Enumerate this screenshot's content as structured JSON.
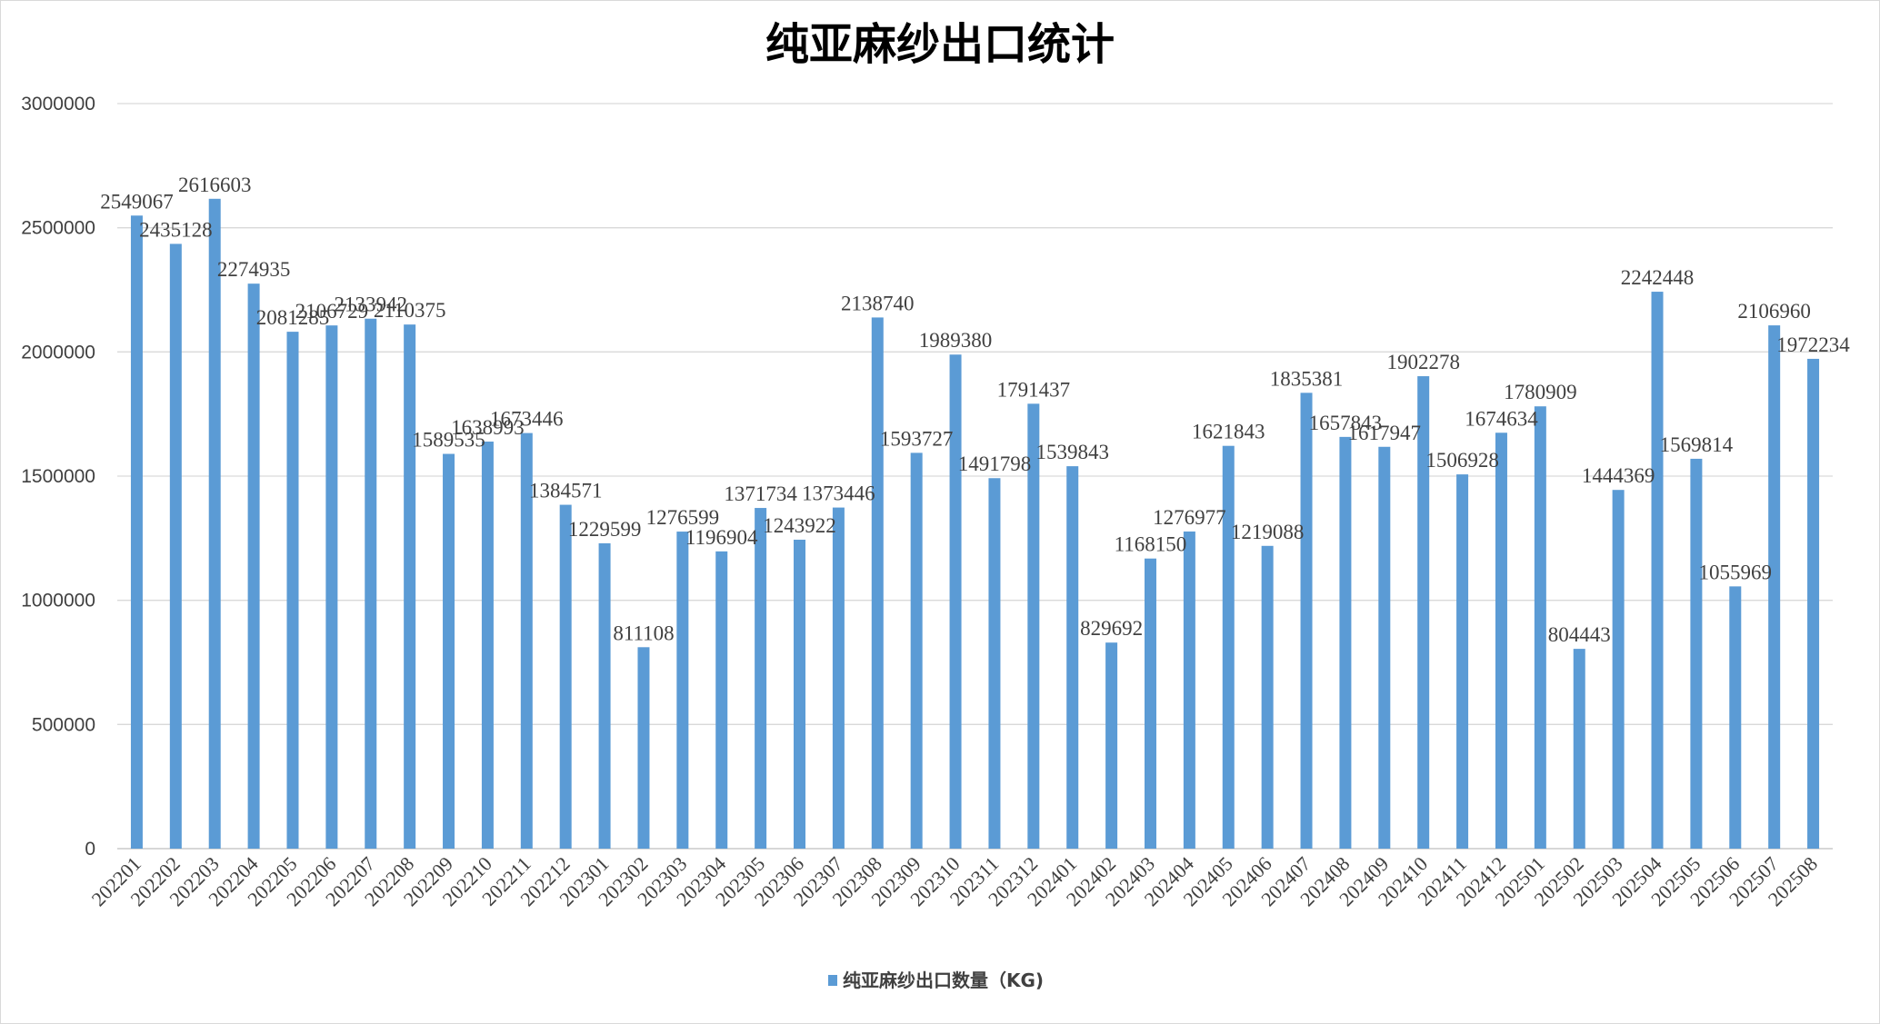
{
  "chart_data": {
    "type": "bar",
    "title": "纯亚麻纱出口统计",
    "xlabel": "",
    "ylabel": "",
    "ylim": [
      0,
      3000000
    ],
    "yticks": [
      0,
      500000,
      1000000,
      1500000,
      2000000,
      2500000,
      3000000
    ],
    "grid": true,
    "legend_position": "bottom",
    "bar_color": "#5B9BD5",
    "categories": [
      "202201",
      "202202",
      "202203",
      "202204",
      "202205",
      "202206",
      "202207",
      "202208",
      "202209",
      "202210",
      "202211",
      "202212",
      "202301",
      "202302",
      "202303",
      "202304",
      "202305",
      "202306",
      "202307",
      "202308",
      "202309",
      "202310",
      "202311",
      "202312",
      "202401",
      "202402",
      "202403",
      "202404",
      "202405",
      "202406",
      "202407",
      "202408",
      "202409",
      "202410",
      "202411",
      "202412",
      "202501",
      "202502",
      "202503",
      "202504",
      "202505",
      "202506",
      "202507",
      "202508"
    ],
    "series": [
      {
        "name": "纯亚麻纱出口数量（KG)",
        "values": [
          2549067,
          2435128,
          2616603,
          2274935,
          2081285,
          2106729,
          2133942,
          2110375,
          1589535,
          1638993,
          1673446,
          1384571,
          1229599,
          811108,
          1276599,
          1196904,
          1371734,
          1243922,
          1373446,
          2138740,
          1593727,
          1989380,
          1491798,
          1791437,
          1539843,
          829692,
          1168150,
          1276977,
          1621843,
          1219088,
          1835381,
          1657843,
          1617947,
          1902278,
          1506928,
          1674634,
          1780909,
          804443,
          1444369,
          2242448,
          1569814,
          1055969,
          2106960,
          1972234
        ]
      }
    ]
  }
}
